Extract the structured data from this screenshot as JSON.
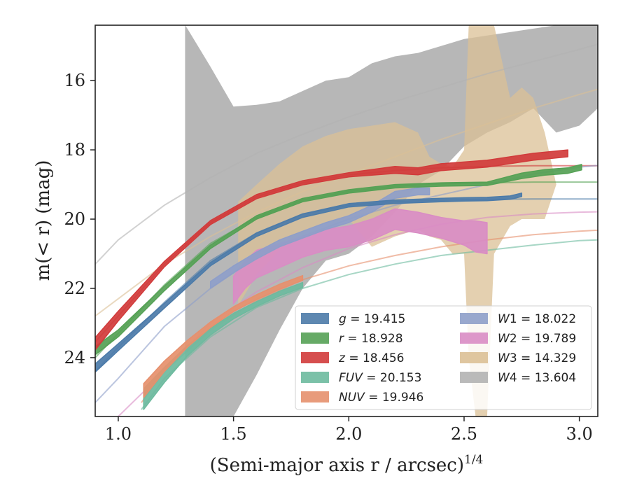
{
  "chart_data": {
    "type": "line",
    "xlabel": "(Semi-major axis r / arcsec)",
    "xlabel_exponent": "1/4",
    "ylabel": "m(< r) (mag)",
    "xlim": [
      0.9,
      3.08
    ],
    "ylim": [
      25.7,
      14.4
    ],
    "y_inverted": true,
    "grid": false,
    "legend_position": "lower-right",
    "x_ticks": [
      {
        "value": 1.0,
        "label": "1.0"
      },
      {
        "value": 1.5,
        "label": "1.5"
      },
      {
        "value": 2.0,
        "label": "2.0"
      },
      {
        "value": 2.5,
        "label": "2.5"
      },
      {
        "value": 3.0,
        "label": "3.0"
      }
    ],
    "y_ticks": [
      {
        "value": 16,
        "label": "16"
      },
      {
        "value": 18,
        "label": "18"
      },
      {
        "value": 20,
        "label": "20"
      },
      {
        "value": 22,
        "label": "22"
      },
      {
        "value": 24,
        "label": "24"
      }
    ],
    "series": [
      {
        "key": "g",
        "name": "g",
        "value_label": "19.415",
        "color": "#4c7ba9",
        "model_x": [
          0.9,
          1.0,
          1.2,
          1.4,
          1.6,
          1.8,
          2.0,
          2.2,
          2.4,
          2.6,
          2.8,
          3.0,
          3.08
        ],
        "model_y": [
          24.4,
          23.7,
          22.4,
          21.2,
          20.4,
          19.85,
          19.6,
          19.5,
          19.45,
          19.43,
          19.42,
          19.42,
          19.42
        ],
        "profile_x": [
          0.9,
          1.0,
          1.2,
          1.4,
          1.6,
          1.8,
          2.0,
          2.2,
          2.4,
          2.5,
          2.6,
          2.7,
          2.75
        ],
        "profile_y": [
          24.3,
          23.7,
          22.5,
          21.3,
          20.45,
          19.9,
          19.6,
          19.5,
          19.45,
          19.43,
          19.42,
          19.38,
          19.3
        ],
        "profile_halfwidth": [
          0.12,
          0.1,
          0.07,
          0.05,
          0.05,
          0.05,
          0.05,
          0.05,
          0.05,
          0.05,
          0.05,
          0.05,
          0.05
        ]
      },
      {
        "key": "r",
        "name": "r",
        "value_label": "18.928",
        "color": "#55a155",
        "model_x": [
          0.9,
          1.0,
          1.2,
          1.4,
          1.6,
          1.8,
          2.0,
          2.2,
          2.4,
          2.6,
          2.8,
          3.0,
          3.08
        ],
        "model_y": [
          24.0,
          23.3,
          21.9,
          20.7,
          19.95,
          19.45,
          19.2,
          19.05,
          18.98,
          18.95,
          18.93,
          18.93,
          18.93
        ],
        "profile_x": [
          0.9,
          1.0,
          1.2,
          1.4,
          1.6,
          1.8,
          2.0,
          2.2,
          2.4,
          2.6,
          2.75,
          2.85,
          2.95,
          3.01
        ],
        "profile_y": [
          23.8,
          23.3,
          22.0,
          20.8,
          19.95,
          19.45,
          19.2,
          19.05,
          19.0,
          18.98,
          18.75,
          18.65,
          18.6,
          18.5
        ],
        "profile_halfwidth": [
          0.12,
          0.1,
          0.07,
          0.05,
          0.05,
          0.05,
          0.05,
          0.05,
          0.05,
          0.05,
          0.08,
          0.08,
          0.08,
          0.08
        ]
      },
      {
        "key": "z",
        "name": "z",
        "value_label": "18.456",
        "color": "#d13b3b",
        "model_x": [
          0.9,
          1.0,
          1.2,
          1.4,
          1.6,
          1.8,
          2.0,
          2.2,
          2.4,
          2.6,
          2.8,
          3.0,
          3.08
        ],
        "model_y": [
          23.55,
          22.8,
          21.3,
          20.1,
          19.35,
          18.95,
          18.72,
          18.6,
          18.52,
          18.48,
          18.46,
          18.46,
          18.46
        ],
        "profile_x": [
          0.9,
          1.0,
          1.2,
          1.4,
          1.6,
          1.8,
          2.0,
          2.2,
          2.3,
          2.4,
          2.6,
          2.8,
          2.95
        ],
        "profile_y": [
          23.6,
          22.8,
          21.3,
          20.1,
          19.35,
          18.95,
          18.72,
          18.58,
          18.62,
          18.5,
          18.4,
          18.2,
          18.1
        ],
        "profile_halfwidth": [
          0.18,
          0.14,
          0.08,
          0.06,
          0.06,
          0.06,
          0.06,
          0.1,
          0.1,
          0.1,
          0.1,
          0.1,
          0.1
        ]
      },
      {
        "key": "FUV",
        "name": "FUV",
        "value_label": "20.153",
        "color": "#6dba9e",
        "model_x": [
          1.1,
          1.2,
          1.4,
          1.6,
          1.8,
          2.0,
          2.2,
          2.4,
          2.6,
          2.8,
          3.0,
          3.08
        ],
        "model_y": [
          25.5,
          24.6,
          23.4,
          22.55,
          22.0,
          21.6,
          21.3,
          21.05,
          20.9,
          20.75,
          20.62,
          20.6
        ],
        "profile_x": [
          1.11,
          1.2,
          1.3,
          1.4,
          1.5,
          1.6,
          1.7,
          1.8
        ],
        "profile_y": [
          25.2,
          24.5,
          23.8,
          23.25,
          22.8,
          22.45,
          22.15,
          21.9
        ],
        "profile_halfwidth": [
          0.3,
          0.22,
          0.15,
          0.1,
          0.08,
          0.07,
          0.07,
          0.07
        ]
      },
      {
        "key": "NUV",
        "name": "NUV",
        "value_label": "19.946",
        "color": "#e6906d",
        "model_x": [
          1.1,
          1.2,
          1.4,
          1.6,
          1.8,
          2.0,
          2.2,
          2.4,
          2.6,
          2.8,
          3.0,
          3.08
        ],
        "model_y": [
          25.3,
          24.4,
          23.2,
          22.35,
          21.75,
          21.35,
          21.05,
          20.8,
          20.6,
          20.45,
          20.35,
          20.32
        ],
        "profile_x": [
          1.11,
          1.2,
          1.3,
          1.4,
          1.5,
          1.6,
          1.7,
          1.8
        ],
        "profile_y": [
          24.95,
          24.25,
          23.6,
          23.05,
          22.6,
          22.25,
          21.95,
          21.7
        ],
        "profile_halfwidth": [
          0.2,
          0.15,
          0.1,
          0.08,
          0.07,
          0.07,
          0.07,
          0.07
        ]
      },
      {
        "key": "W1",
        "name": "W1",
        "value_label": "18.022",
        "color": "#8e9ec9",
        "model_x": [
          0.9,
          1.0,
          1.2,
          1.4,
          1.6,
          1.8,
          2.0,
          2.2,
          2.4,
          2.6,
          2.8,
          3.0,
          3.08
        ],
        "model_y": [
          25.3,
          24.6,
          23.1,
          22.0,
          21.1,
          20.5,
          20.0,
          19.6,
          19.3,
          19.0,
          18.7,
          18.5,
          18.45
        ],
        "profile_x": [
          1.4,
          1.5,
          1.6,
          1.7,
          1.8,
          1.9,
          2.0,
          2.1,
          2.2,
          2.3,
          2.35
        ],
        "profile_y": [
          21.9,
          21.45,
          21.05,
          20.7,
          20.45,
          20.2,
          20.0,
          19.7,
          19.3,
          19.2,
          19.2
        ],
        "profile_halfwidth": [
          0.1,
          0.1,
          0.1,
          0.1,
          0.1,
          0.1,
          0.1,
          0.1,
          0.1,
          0.1,
          0.1
        ]
      },
      {
        "key": "W2",
        "name": "W2",
        "value_label": "19.789",
        "color": "#d98cc4",
        "model_x": [
          1.0,
          1.2,
          1.4,
          1.6,
          1.8,
          2.0,
          2.2,
          2.4,
          2.6,
          2.8,
          3.0,
          3.08
        ],
        "model_y": [
          25.7,
          24.4,
          23.0,
          22.1,
          21.4,
          20.85,
          20.45,
          20.15,
          19.95,
          19.85,
          19.8,
          19.79
        ],
        "profile_x": [
          1.5,
          1.55,
          1.6,
          1.7,
          1.8,
          1.9,
          2.0,
          2.1,
          2.2,
          2.3,
          2.4,
          2.5,
          2.55,
          2.6
        ],
        "profile_y": [
          22.05,
          21.6,
          21.3,
          21.05,
          20.8,
          20.6,
          20.5,
          20.3,
          20.0,
          20.1,
          20.25,
          20.4,
          20.5,
          20.55
        ],
        "profile_halfwidth": [
          0.4,
          0.4,
          0.4,
          0.35,
          0.3,
          0.3,
          0.3,
          0.3,
          0.3,
          0.3,
          0.3,
          0.35,
          0.45,
          0.45
        ]
      },
      {
        "key": "W3",
        "name": "W3",
        "value_label": "14.329",
        "color": "#dbc096",
        "model_x": [
          0.9,
          1.0,
          1.2,
          1.4,
          1.6,
          1.8,
          2.0,
          2.2,
          2.4,
          2.6,
          2.8,
          3.0,
          3.08
        ],
        "model_y": [
          22.8,
          22.3,
          21.3,
          20.5,
          19.8,
          19.2,
          18.7,
          18.2,
          17.7,
          17.25,
          16.8,
          16.4,
          16.25
        ],
        "band_x": [
          1.52,
          1.6,
          1.7,
          1.8,
          1.9,
          2.0,
          2.1,
          2.2,
          2.3,
          2.35,
          2.4,
          2.45,
          2.5,
          2.52,
          2.55,
          2.56,
          2.6,
          2.63,
          2.7,
          2.75,
          2.8,
          2.85,
          2.9,
          3.0
        ],
        "band_lo": [
          19.5,
          19.0,
          18.4,
          17.9,
          17.6,
          17.4,
          17.3,
          17.2,
          17.5,
          18.2,
          18.4,
          18.5,
          18.0,
          14.4,
          14.4,
          14.4,
          14.4,
          14.4,
          16.5,
          16.2,
          16.5,
          17.5,
          19.0,
          18.5
        ],
        "band_hi": [
          22.5,
          21.6,
          20.9,
          20.4,
          20.1,
          20.0,
          20.8,
          20.5,
          20.3,
          20.5,
          20.6,
          21.0,
          21.0,
          24.0,
          25.7,
          25.7,
          25.7,
          21.0,
          20.2,
          20.0,
          20.0,
          20.0,
          19.0,
          18.5
        ]
      },
      {
        "key": "W4",
        "name": "W4",
        "value_label": "13.604",
        "color": "#b3b3b3",
        "model_x": [
          0.9,
          1.0,
          1.2,
          1.4,
          1.6,
          1.8,
          2.0,
          2.2,
          2.4,
          2.6,
          2.8,
          3.0,
          3.08
        ],
        "model_y": [
          21.3,
          20.6,
          19.6,
          18.8,
          18.1,
          17.55,
          17.05,
          16.6,
          16.2,
          15.8,
          15.45,
          15.1,
          14.95
        ],
        "band_x": [
          1.29,
          1.3,
          1.4,
          1.5,
          1.6,
          1.7,
          1.8,
          1.9,
          2.0,
          2.1,
          2.2,
          2.3,
          2.4,
          2.5,
          2.6,
          2.7,
          2.8,
          2.9,
          3.0,
          3.08
        ],
        "band_lo": [
          14.4,
          14.5,
          15.6,
          16.75,
          16.7,
          16.6,
          16.3,
          16.0,
          15.9,
          15.5,
          15.3,
          15.2,
          15.0,
          14.8,
          14.7,
          14.6,
          14.5,
          14.4,
          14.4,
          14.4
        ],
        "band_hi": [
          25.7,
          25.7,
          25.7,
          25.7,
          24.5,
          23.2,
          22.0,
          21.2,
          21.0,
          20.5,
          19.8,
          19.0,
          18.6,
          17.9,
          17.5,
          17.2,
          16.8,
          17.5,
          17.3,
          16.8
        ]
      }
    ]
  }
}
